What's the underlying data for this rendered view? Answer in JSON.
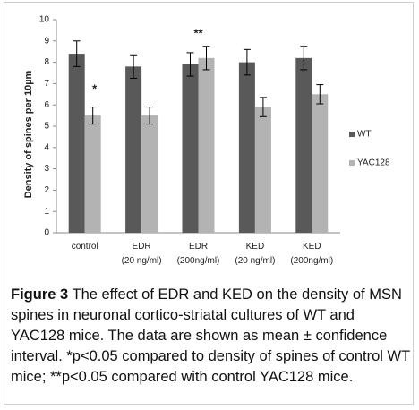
{
  "chart_data": {
    "type": "bar",
    "y_label": "Density of spines per 10µm",
    "categories": [
      [
        "control"
      ],
      [
        "EDR",
        "(20 ng/ml)"
      ],
      [
        "EDR",
        "(200ng/ml)"
      ],
      [
        "KED",
        "(20 ng/ml)"
      ],
      [
        "KED",
        "(200ng/ml)"
      ]
    ],
    "series": [
      {
        "name": "WT",
        "color": "#595959",
        "values": [
          8.4,
          7.8,
          7.9,
          8.0,
          8.2
        ],
        "errors": [
          0.6,
          0.55,
          0.55,
          0.6,
          0.55
        ]
      },
      {
        "name": "YAC128",
        "color": "#b3b3b3",
        "values": [
          5.5,
          5.5,
          8.2,
          5.9,
          6.5
        ],
        "errors": [
          0.4,
          0.4,
          0.55,
          0.45,
          0.45
        ]
      }
    ],
    "annotations": [
      "*",
      "**"
    ],
    "ylim": [
      0,
      10
    ],
    "yticks": [
      0,
      1,
      2,
      3,
      4,
      5,
      6,
      7,
      8,
      9,
      10
    ],
    "grid": false,
    "legend": "right"
  },
  "caption": {
    "label": "Figure 3",
    "text": "The effect of EDR and KED on the density of MSN spines in neuronal cortico-striatal cultures of WT and YAC128 mice. The data are shown as mean ± confidence interval. *p<0.05 compared to density of spines of control WT mice; **p<0.05 compared with control YAC128 mice."
  }
}
